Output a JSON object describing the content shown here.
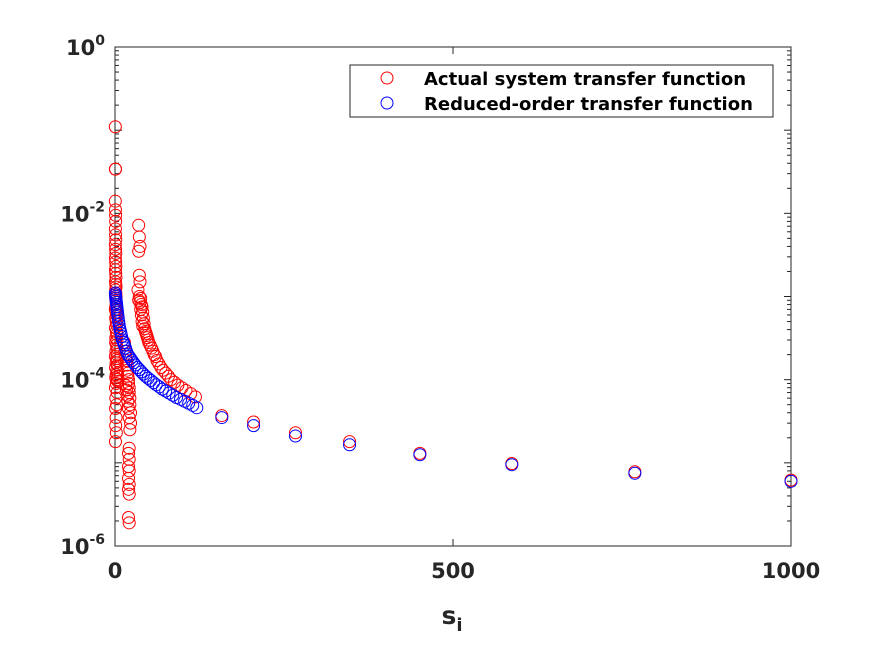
{
  "chart_data": {
    "type": "scatter",
    "xlabel": "s",
    "xlabel_subscript": "i",
    "ylabel": "",
    "xlim": [
      0,
      1000
    ],
    "ylim": [
      1e-06,
      1
    ],
    "yscale": "log",
    "grid": false,
    "legend_position": "top-right",
    "x_ticks": [
      {
        "value": 0,
        "label": "0"
      },
      {
        "value": 500,
        "label": "500"
      },
      {
        "value": 1000,
        "label": "1000"
      }
    ],
    "y_ticks": [
      {
        "value": 1e-06,
        "base": "10",
        "exp": "-6"
      },
      {
        "value": 0.0001,
        "base": "10",
        "exp": "-4"
      },
      {
        "value": 0.01,
        "base": "10",
        "exp": "-2"
      },
      {
        "value": 1,
        "base": "10",
        "exp": "0"
      }
    ],
    "series": [
      {
        "name": "Actual system transfer function",
        "color": "#ff0000",
        "marker": "circle-open",
        "points": [
          [
            0.5,
            0.11
          ],
          [
            0.6,
            0.034
          ],
          [
            0.8,
            0.034
          ],
          [
            0.5,
            0.014
          ],
          [
            0.7,
            0.011
          ],
          [
            0.9,
            0.0095
          ],
          [
            1.0,
            0.008
          ],
          [
            0.6,
            0.0065
          ],
          [
            0.8,
            0.0055
          ],
          [
            1.1,
            0.0048
          ],
          [
            0.5,
            0.0042
          ],
          [
            0.9,
            0.0037
          ],
          [
            1.2,
            0.0033
          ],
          [
            0.6,
            0.0029
          ],
          [
            1.0,
            0.0026
          ],
          [
            1.3,
            0.0023
          ],
          [
            0.7,
            0.0021
          ],
          [
            1.1,
            0.0019
          ],
          [
            1.4,
            0.0017
          ],
          [
            0.8,
            0.0015
          ],
          [
            1.2,
            0.0014
          ],
          [
            1.5,
            0.0013
          ],
          [
            0.9,
            0.0012
          ],
          [
            1.3,
            0.0011
          ],
          [
            1.6,
            0.001
          ],
          [
            1.0,
            0.00095
          ],
          [
            1.4,
            0.0009
          ],
          [
            1.8,
            0.00085
          ],
          [
            2.0,
            0.0008
          ],
          [
            1.1,
            0.00075
          ],
          [
            0.5,
            0.0007
          ],
          [
            1.6,
            0.00065
          ],
          [
            2.2,
            0.0006
          ],
          [
            1.0,
            0.00055
          ],
          [
            1.8,
            0.0005
          ],
          [
            2.4,
            0.00046
          ],
          [
            0.7,
            0.00042
          ],
          [
            2.0,
            0.00038
          ],
          [
            2.6,
            0.00035
          ],
          [
            1.2,
            0.00032
          ],
          [
            2.8,
            0.0003
          ],
          [
            0.9,
            0.00028
          ],
          [
            2.2,
            0.00026
          ],
          [
            3.0,
            0.00024
          ],
          [
            1.4,
            0.00022
          ],
          [
            3.2,
            0.0002
          ],
          [
            0.6,
            0.00019
          ],
          [
            2.5,
            0.00018
          ],
          [
            3.4,
            0.00017
          ],
          [
            1.6,
            0.00016
          ],
          [
            3.6,
            0.00015
          ],
          [
            0.8,
            0.00014
          ],
          [
            2.8,
            0.00013
          ],
          [
            3.8,
            0.00012
          ],
          [
            1.8,
            0.000115
          ],
          [
            4.0,
            0.00011
          ],
          [
            1.0,
            0.000105
          ],
          [
            3.0,
            0.0001
          ],
          [
            4.2,
            9.5e-05
          ],
          [
            2.0,
            9e-05
          ],
          [
            0.6,
            8e-05
          ],
          [
            3.2,
            7e-05
          ],
          [
            1.2,
            6e-05
          ],
          [
            2.4,
            5e-05
          ],
          [
            0.8,
            4.5e-05
          ],
          [
            1.6,
            3.5e-05
          ],
          [
            1.0,
            2.8e-05
          ],
          [
            2.0,
            2.3e-05
          ],
          [
            0.7,
            1.8e-05
          ],
          [
            14,
            0.00028
          ],
          [
            15,
            0.00022
          ],
          [
            16,
            0.00019
          ],
          [
            17,
            0.00017
          ],
          [
            18,
            0.00015
          ],
          [
            18,
            0.00013
          ],
          [
            19,
            0.00012
          ],
          [
            19,
            0.00011
          ],
          [
            20,
            0.0001
          ],
          [
            20,
            9e-05
          ],
          [
            16,
            8.5e-05
          ],
          [
            21,
            8e-05
          ],
          [
            17,
            7.5e-05
          ],
          [
            21,
            7e-05
          ],
          [
            18,
            6.5e-05
          ],
          [
            22,
            6e-05
          ],
          [
            19,
            5.5e-05
          ],
          [
            22,
            5e-05
          ],
          [
            20,
            4.5e-05
          ],
          [
            23,
            4e-05
          ],
          [
            21,
            3.5e-05
          ],
          [
            23,
            3e-05
          ],
          [
            22,
            2.5e-05
          ],
          [
            21,
            1.5e-05
          ],
          [
            20,
            1.3e-05
          ],
          [
            21,
            1.1e-05
          ],
          [
            20,
            9e-06
          ],
          [
            21,
            8e-06
          ],
          [
            20,
            6.5e-06
          ],
          [
            21,
            5.5e-06
          ],
          [
            20,
            4.8e-06
          ],
          [
            21,
            4.2e-06
          ],
          [
            20,
            2.2e-06
          ],
          [
            21,
            1.9e-06
          ],
          [
            35,
            0.0072
          ],
          [
            36,
            0.0052
          ],
          [
            37,
            0.004
          ],
          [
            35,
            0.0035
          ],
          [
            36,
            0.0018
          ],
          [
            37,
            0.0015
          ],
          [
            34,
            0.0012
          ],
          [
            36,
            0.001
          ],
          [
            38,
            0.00095
          ],
          [
            35,
            0.0009
          ],
          [
            37,
            0.00085
          ],
          [
            39,
            0.0008
          ],
          [
            40,
            0.00075
          ],
          [
            38,
            0.0007
          ],
          [
            41,
            0.00065
          ],
          [
            39,
            0.0006
          ],
          [
            42,
            0.00055
          ],
          [
            40,
            0.0005
          ],
          [
            43,
            0.00047
          ],
          [
            41,
            0.00044
          ],
          [
            44,
            0.00041
          ],
          [
            45,
            0.00038
          ],
          [
            46,
            0.00036
          ],
          [
            47,
            0.00034
          ],
          [
            48,
            0.00032
          ],
          [
            49,
            0.0003
          ],
          [
            50,
            0.00028
          ],
          [
            52,
            0.00026
          ],
          [
            54,
            0.00024
          ],
          [
            56,
            0.00022
          ],
          [
            58,
            0.0002
          ],
          [
            60,
            0.00019
          ],
          [
            62,
            0.00017
          ],
          [
            65,
            0.000155
          ],
          [
            68,
            0.00014
          ],
          [
            71,
            0.00013
          ],
          [
            75,
            0.00012
          ],
          [
            79,
            0.00011
          ],
          [
            83,
            0.0001
          ],
          [
            88,
            9.3e-05
          ],
          [
            93,
            8.6e-05
          ],
          [
            99,
            8e-05
          ],
          [
            105,
            7.4e-05
          ],
          [
            112,
            6.8e-05
          ],
          [
            119,
            6.2e-05
          ],
          [
            158,
            3.7e-05
          ],
          [
            205,
            3.1e-05
          ],
          [
            267,
            2.3e-05
          ],
          [
            347,
            1.8e-05
          ],
          [
            451,
            1.3e-05
          ],
          [
            587,
            9.8e-06
          ],
          [
            769,
            7.8e-06
          ],
          [
            1000,
            6.2e-06
          ]
        ]
      },
      {
        "name": "Reduced-order transfer function",
        "color": "#0000ff",
        "marker": "circle-open",
        "points": [
          [
            0.5,
            0.0011
          ],
          [
            0.8,
            0.00105
          ],
          [
            1.0,
            0.001
          ],
          [
            1.3,
            0.00095
          ],
          [
            1.6,
            0.0009
          ],
          [
            2.0,
            0.00085
          ],
          [
            2.4,
            0.0008
          ],
          [
            2.8,
            0.00075
          ],
          [
            3.2,
            0.0007
          ],
          [
            3.7,
            0.00065
          ],
          [
            4.2,
            0.0006
          ],
          [
            4.8,
            0.00055
          ],
          [
            5.4,
            0.0005
          ],
          [
            6.1,
            0.00046
          ],
          [
            6.9,
            0.00042
          ],
          [
            7.8,
            0.00039
          ],
          [
            8.8,
            0.00036
          ],
          [
            9.9,
            0.00033
          ],
          [
            11,
            0.0003
          ],
          [
            12.5,
            0.00028
          ],
          [
            14,
            0.00026
          ],
          [
            15.5,
            0.00024
          ],
          [
            17,
            0.00022
          ],
          [
            19,
            0.0002
          ],
          [
            21,
            0.00019
          ],
          [
            23,
            0.00018
          ],
          [
            25,
            0.00017
          ],
          [
            27.5,
            0.00016
          ],
          [
            30,
            0.00015
          ],
          [
            33,
            0.00014
          ],
          [
            36,
            0.000132
          ],
          [
            39,
            0.000124
          ],
          [
            42,
            0.000117
          ],
          [
            45.5,
            0.00011
          ],
          [
            49,
            0.000104
          ],
          [
            53,
            9.8e-05
          ],
          [
            57,
            9.2e-05
          ],
          [
            61,
            8.7e-05
          ],
          [
            65.5,
            8.2e-05
          ],
          [
            70,
            7.7e-05
          ],
          [
            75,
            7.3e-05
          ],
          [
            80,
            6.9e-05
          ],
          [
            85.5,
            6.5e-05
          ],
          [
            91,
            6.1e-05
          ],
          [
            97,
            5.8e-05
          ],
          [
            103,
            5.5e-05
          ],
          [
            109,
            5.2e-05
          ],
          [
            115,
            4.9e-05
          ],
          [
            121,
            4.6e-05
          ],
          [
            158,
            3.5e-05
          ],
          [
            205,
            2.8e-05
          ],
          [
            267,
            2.1e-05
          ],
          [
            347,
            1.65e-05
          ],
          [
            451,
            1.25e-05
          ],
          [
            587,
            9.5e-06
          ],
          [
            769,
            7.5e-06
          ],
          [
            1000,
            6e-06
          ]
        ]
      }
    ]
  }
}
